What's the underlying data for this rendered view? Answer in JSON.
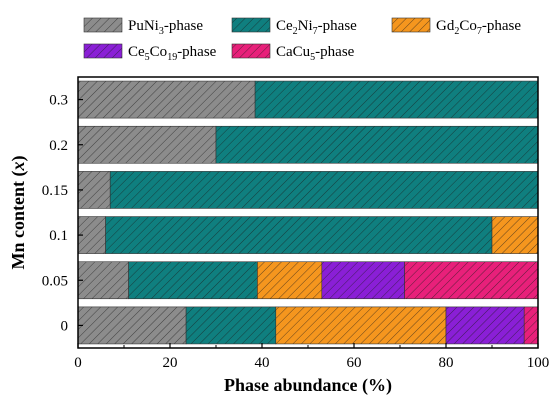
{
  "chart_data": {
    "type": "bar",
    "orientation": "horizontal",
    "stacked": true,
    "xlabel": "Phase abundance (%)",
    "ylabel_parts": [
      "Mn content (",
      "x",
      ")"
    ],
    "xlim": [
      0,
      100
    ],
    "xticks": [
      0,
      20,
      40,
      60,
      80,
      100
    ],
    "categories": [
      "0.3",
      "0.2",
      "0.15",
      "0.1",
      "0.05",
      "0"
    ],
    "series": [
      {
        "name_parts": [
          "PuNi",
          "3",
          "-phase"
        ],
        "color": "#8c8c8c",
        "values": [
          38.5,
          30,
          7,
          6,
          11,
          23.5
        ]
      },
      {
        "name_parts": [
          "Ce",
          "2",
          "Ni",
          "7",
          "-phase"
        ],
        "color": "#0f7f7f",
        "values": [
          61.5,
          70,
          93,
          84,
          28,
          19.5
        ]
      },
      {
        "name_parts": [
          "Gd",
          "2",
          "Co",
          "7",
          "-phase"
        ],
        "color": "#f5961e",
        "values": [
          0,
          0,
          0,
          10,
          14,
          37
        ]
      },
      {
        "name_parts": [
          "Ce",
          "5",
          "Co",
          "19",
          "-phase"
        ],
        "color": "#8a1fd6",
        "values": [
          0,
          0,
          0,
          0,
          18,
          17
        ]
      },
      {
        "name_parts": [
          "CaCu",
          "5",
          "-phase"
        ],
        "color": "#e8207a",
        "values": [
          0,
          0,
          0,
          0,
          29,
          3
        ]
      }
    ],
    "legend_position": "top"
  }
}
